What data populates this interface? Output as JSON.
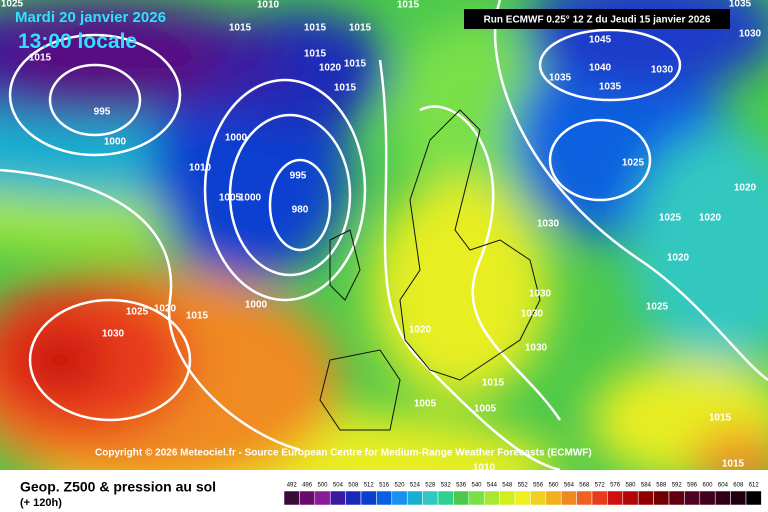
{
  "header": {
    "date": "Mardi 20 janvier 2026",
    "time": "13:00 locale",
    "run": "Run ECMWF 0.25° 12 Z du Jeudi 15 janvier 2026"
  },
  "map": {
    "isobar_labels": [
      "1025",
      "1010",
      "1015",
      "1035",
      "1015",
      "1015",
      "1015",
      "1045",
      "1030",
      "1015",
      "1015",
      "1020",
      "1015",
      "1040",
      "1030",
      "1035",
      "1035",
      "1015",
      "995",
      "1000",
      "1000",
      "1010",
      "995",
      "1025",
      "1020",
      "1005",
      "1000",
      "980",
      "1030",
      "1025",
      "1020",
      "1020",
      "1000",
      "1025",
      "1020",
      "1015",
      "1030",
      "1030",
      "1025",
      "1020",
      "1030",
      "1030",
      "1015",
      "1005",
      "1005",
      "1015",
      "1015",
      "1010"
    ],
    "copyright": "Copyright © 2026 Meteociel.fr - Source European Centre for Medium-Range Weather Forecasts (ECMWF)"
  },
  "footer": {
    "title": "Geop. Z500 & pression au sol",
    "lead": "(+ 120h)",
    "scale": [
      492,
      496,
      500,
      504,
      508,
      512,
      516,
      520,
      524,
      528,
      532,
      536,
      540,
      544,
      548,
      552,
      556,
      560,
      564,
      568,
      572,
      576,
      580,
      584,
      588,
      592,
      596,
      600,
      604,
      608,
      612
    ]
  }
}
